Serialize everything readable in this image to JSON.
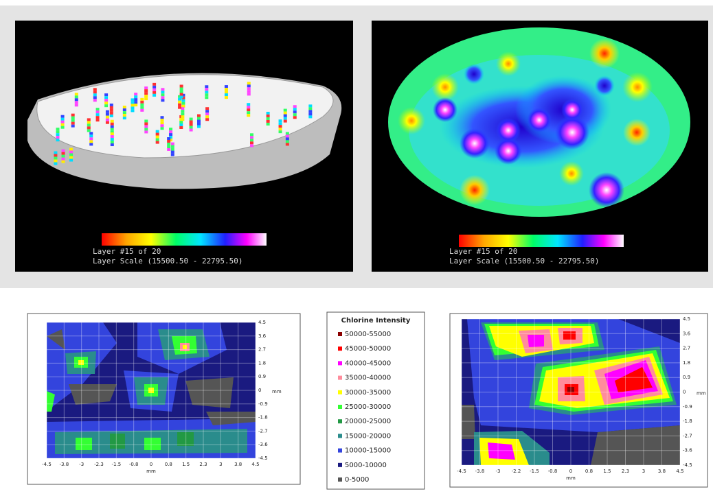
{
  "top_left": {
    "caption": [
      "Layer #15 of 20",
      "Layer Scale (15500.50 - 22795.50)"
    ]
  },
  "top_right": {
    "caption": [
      "Layer #15 of 20",
      "Layer Scale (15500.50 - 22795.50)"
    ]
  },
  "bottom_left": {
    "x_ticks": [
      "-4.5",
      "-3.8",
      "-3",
      "-2.3",
      "-1.5",
      "-0.8",
      "0",
      "0.8",
      "1.5",
      "2.3",
      "3",
      "3.8",
      "4.5"
    ],
    "y_ticks": [
      "4.5",
      "3.6",
      "2.7",
      "1.8",
      "0.9",
      "0",
      "-0.9",
      "-1.8",
      "-2.7",
      "-3.6",
      "-4.5"
    ],
    "x_label": "mm",
    "y_label": "mm"
  },
  "legend": {
    "title": "Chlorine Intensity",
    "items": [
      {
        "label": "50000-55000",
        "color": "#8b0000"
      },
      {
        "label": "45000-50000",
        "color": "#ff0000"
      },
      {
        "label": "40000-45000",
        "color": "#ff00ff"
      },
      {
        "label": "35000-40000",
        "color": "#ff8c9c"
      },
      {
        "label": "30000-35000",
        "color": "#ffff00"
      },
      {
        "label": "25000-30000",
        "color": "#33ff33"
      },
      {
        "label": "20000-25000",
        "color": "#229944"
      },
      {
        "label": "15000-20000",
        "color": "#2a8c8c"
      },
      {
        "label": "10000-15000",
        "color": "#3344dd"
      },
      {
        "label": "5000-10000",
        "color": "#1a1a80"
      },
      {
        "label": "0-5000",
        "color": "#555555"
      }
    ]
  },
  "bottom_right": {
    "x_ticks": [
      "-4.5",
      "-3.8",
      "-3",
      "-2.2",
      "-1.5",
      "-0.8",
      "0",
      "0.8",
      "1.5",
      "2.3",
      "3",
      "3.8",
      "4.5"
    ],
    "y_ticks": [
      "4.5",
      "3.6",
      "2.7",
      "1.8",
      "0.9",
      "0",
      "-0.9",
      "-1.8",
      "-2.7",
      "-3.6",
      "-4.5"
    ],
    "x_label": "mm",
    "y_label": "mm"
  }
}
